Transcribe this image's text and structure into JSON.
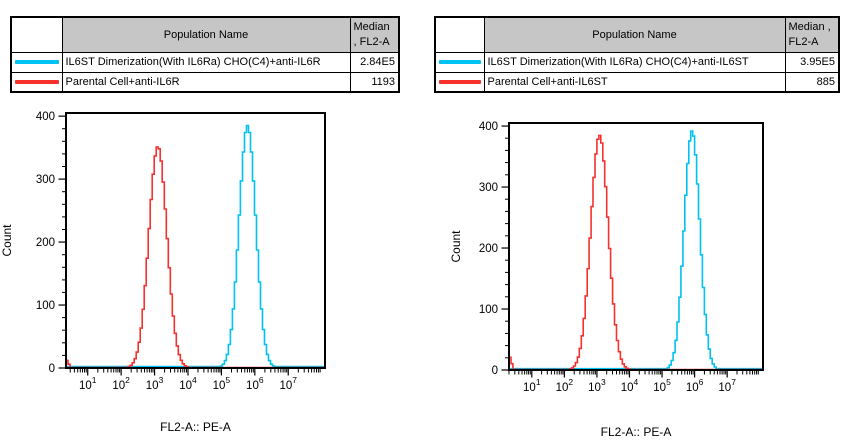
{
  "colors": {
    "cyan": "#00c2f2",
    "red": "#f6312e",
    "table_header_bg": "#c6c6c6",
    "axis": "#000000"
  },
  "panels": [
    {
      "table": {
        "population_header": "Population Name",
        "median_header_line1": "Median",
        "median_header_line2": ", FL2-A",
        "rows": [
          {
            "color_key": "cyan",
            "name": "IL6ST Dimerization(With IL6Ra) CHO(C4)+anti-IL6R",
            "median": "2.84E5"
          },
          {
            "color_key": "red",
            "name": "Parental Cell+anti-IL6R",
            "median": "1193"
          }
        ]
      }
    },
    {
      "table": {
        "population_header": "Population Name",
        "median_header_line1": "Median ,",
        "median_header_line2": "FL2-A",
        "rows": [
          {
            "color_key": "cyan",
            "name": "IL6ST Dimerization(With IL6Ra) CHO(C4)+anti-IL6ST",
            "median": "3.95E5"
          },
          {
            "color_key": "red",
            "name": "Parental Cell+anti-IL6ST",
            "median": "885"
          }
        ]
      }
    }
  ],
  "chart_data": [
    {
      "type": "line",
      "subtype": "flow-cytometry-step-histogram",
      "title": "",
      "xlabel": "FL2-A:: PE-A",
      "ylabel": "Count",
      "x_scale": "log10",
      "x_range_log10": [
        0.35,
        8.1
      ],
      "x_major_tick_exponents": [
        1,
        2,
        3,
        4,
        5,
        6,
        7
      ],
      "x_minor_ticks": "log-decade-2-to-9",
      "tick_label_base": "10",
      "ylim": [
        0,
        405
      ],
      "y_major_ticks": [
        0,
        100,
        200,
        300,
        400
      ],
      "y_minor_tick_interval": 20,
      "grid": false,
      "legend_position": "none",
      "series": [
        {
          "name": "IL6ST Dimerization(With IL6Ra) CHO(C4)+anti-IL6R",
          "color_key": "cyan",
          "median": "2.84E5",
          "peak_center_log10": 5.78,
          "peak_height": 385,
          "sigma_log10": 0.25,
          "left_edge_spike_height": 0,
          "baseline": 2.2
        },
        {
          "name": "Parental Cell+anti-IL6R",
          "color_key": "red",
          "median": "1193",
          "peak_center_log10": 3.1,
          "peak_height": 352,
          "sigma_log10": 0.27,
          "left_edge_spike_height": 15,
          "baseline": 0.8
        }
      ]
    },
    {
      "type": "line",
      "subtype": "flow-cytometry-step-histogram",
      "title": "",
      "xlabel": "FL2-A:: PE-A",
      "ylabel": "Count",
      "x_scale": "log10",
      "x_range_log10": [
        0.3,
        8.1
      ],
      "x_major_tick_exponents": [
        1,
        2,
        3,
        4,
        5,
        6,
        7
      ],
      "x_minor_ticks": "log-decade-2-to-9",
      "tick_label_base": "10",
      "ylim": [
        0,
        405
      ],
      "y_major_ticks": [
        0,
        100,
        200,
        300,
        400
      ],
      "y_minor_tick_interval": 20,
      "grid": false,
      "legend_position": "none",
      "series": [
        {
          "name": "IL6ST Dimerization(With IL6Ra) CHO(C4)+anti-IL6ST",
          "color_key": "cyan",
          "median": "3.95E5",
          "peak_center_log10": 5.92,
          "peak_height": 392,
          "sigma_log10": 0.24,
          "left_edge_spike_height": 0,
          "baseline": 2.2
        },
        {
          "name": "Parental Cell+anti-IL6ST",
          "color_key": "red",
          "median": "885",
          "peak_center_log10": 3.08,
          "peak_height": 385,
          "sigma_log10": 0.27,
          "left_edge_spike_height": 26,
          "baseline": 0.8
        }
      ]
    }
  ]
}
